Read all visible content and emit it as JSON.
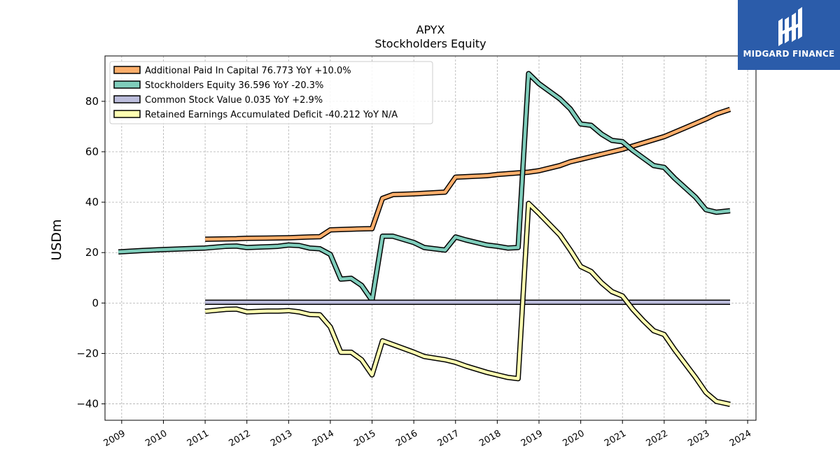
{
  "brand": {
    "name": "MIDGARD FINANCE",
    "bg_color": "#2b5caa"
  },
  "chart_data": {
    "type": "line",
    "title": "APYX",
    "subtitle": "Stockholders  Equity",
    "ylabel": "USDm",
    "xlabel": "",
    "xlim": [
      2008.6,
      2024.2
    ],
    "ylim": [
      -46.5,
      98
    ],
    "x_ticks": [
      "2009",
      "2010",
      "2011",
      "2012",
      "2013",
      "2014",
      "2015",
      "2016",
      "2017",
      "2018",
      "2019",
      "2020",
      "2021",
      "2022",
      "2023",
      "2024"
    ],
    "y_ticks": [
      -40,
      -20,
      0,
      20,
      40,
      60,
      80
    ],
    "grid": true,
    "legend_position": "top-left",
    "series": [
      {
        "name": "Additional Paid In Capital",
        "legend": "Additional Paid In Capital  76.773 YoY +10.0%",
        "color": "#fdae6b",
        "points": [
          [
            2011.0,
            25.3
          ],
          [
            2011.75,
            25.5
          ],
          [
            2012.0,
            25.7
          ],
          [
            2012.75,
            25.8
          ],
          [
            2013.0,
            25.9
          ],
          [
            2013.5,
            26.2
          ],
          [
            2013.75,
            26.3
          ],
          [
            2014.0,
            29.0
          ],
          [
            2014.5,
            29.3
          ],
          [
            2015.0,
            29.5
          ],
          [
            2015.25,
            41.5
          ],
          [
            2015.5,
            43.0
          ],
          [
            2016.0,
            43.3
          ],
          [
            2016.75,
            44.0
          ],
          [
            2017.0,
            49.9
          ],
          [
            2017.75,
            50.5
          ],
          [
            2018.0,
            51.0
          ],
          [
            2018.5,
            51.6
          ],
          [
            2018.75,
            51.9
          ],
          [
            2019.0,
            52.5
          ],
          [
            2019.5,
            54.5
          ],
          [
            2019.75,
            56.0
          ],
          [
            2020.0,
            57.0
          ],
          [
            2020.5,
            59.0
          ],
          [
            2021.0,
            61.0
          ],
          [
            2021.5,
            63.5
          ],
          [
            2022.0,
            66.0
          ],
          [
            2022.5,
            69.5
          ],
          [
            2023.0,
            73.0
          ],
          [
            2023.25,
            75.0
          ],
          [
            2023.58,
            76.8
          ]
        ]
      },
      {
        "name": "Stockholders Equity",
        "legend": "Stockholders Equity  36.596 YoY -20.3%",
        "color": "#7fcdbb",
        "points": [
          [
            2008.92,
            20.3
          ],
          [
            2009.5,
            20.8
          ],
          [
            2010.0,
            21.2
          ],
          [
            2010.5,
            21.5
          ],
          [
            2011.0,
            21.8
          ],
          [
            2011.5,
            22.5
          ],
          [
            2011.75,
            22.6
          ],
          [
            2012.0,
            22.0
          ],
          [
            2012.5,
            22.3
          ],
          [
            2012.75,
            22.5
          ],
          [
            2013.0,
            23.0
          ],
          [
            2013.25,
            22.8
          ],
          [
            2013.5,
            21.8
          ],
          [
            2013.75,
            21.5
          ],
          [
            2014.0,
            19.3
          ],
          [
            2014.25,
            9.5
          ],
          [
            2014.5,
            9.8
          ],
          [
            2014.75,
            7.0
          ],
          [
            2015.0,
            1.0
          ],
          [
            2015.25,
            26.5
          ],
          [
            2015.5,
            26.5
          ],
          [
            2016.0,
            24.0
          ],
          [
            2016.25,
            22.0
          ],
          [
            2016.75,
            21.0
          ],
          [
            2017.0,
            26.2
          ],
          [
            2017.25,
            25.0
          ],
          [
            2017.75,
            23.0
          ],
          [
            2018.0,
            22.5
          ],
          [
            2018.25,
            21.8
          ],
          [
            2018.5,
            22.0
          ],
          [
            2018.75,
            91.0
          ],
          [
            2019.0,
            87.0
          ],
          [
            2019.5,
            81.0
          ],
          [
            2019.75,
            77.0
          ],
          [
            2020.0,
            71.0
          ],
          [
            2020.25,
            70.5
          ],
          [
            2020.5,
            67.0
          ],
          [
            2020.75,
            64.5
          ],
          [
            2021.0,
            64.0
          ],
          [
            2021.25,
            60.5
          ],
          [
            2021.5,
            57.5
          ],
          [
            2021.75,
            54.5
          ],
          [
            2022.0,
            53.8
          ],
          [
            2022.25,
            49.5
          ],
          [
            2022.75,
            42.0
          ],
          [
            2023.0,
            37.0
          ],
          [
            2023.25,
            36.0
          ],
          [
            2023.58,
            36.6
          ]
        ]
      },
      {
        "name": "Common Stock Value",
        "legend": "Common Stock Value  0.035 YoY +2.9%",
        "color": "#bcbddc",
        "points": [
          [
            2011.0,
            0.3
          ],
          [
            2023.58,
            0.3
          ]
        ]
      },
      {
        "name": "Retained Earnings Accumulated Deficit",
        "legend": "Retained Earnings Accumulated Deficit  -40.212 YoY N/A",
        "color": "#ffffb2",
        "points": [
          [
            2011.0,
            -3.3
          ],
          [
            2011.5,
            -2.5
          ],
          [
            2011.75,
            -2.4
          ],
          [
            2012.0,
            -3.5
          ],
          [
            2012.5,
            -3.2
          ],
          [
            2012.75,
            -3.2
          ],
          [
            2013.0,
            -3.0
          ],
          [
            2013.25,
            -3.5
          ],
          [
            2013.5,
            -4.5
          ],
          [
            2013.75,
            -4.7
          ],
          [
            2014.0,
            -9.5
          ],
          [
            2014.25,
            -19.5
          ],
          [
            2014.5,
            -19.5
          ],
          [
            2014.75,
            -22.5
          ],
          [
            2015.0,
            -28.5
          ],
          [
            2015.25,
            -15.0
          ],
          [
            2015.5,
            -16.5
          ],
          [
            2016.0,
            -19.5
          ],
          [
            2016.25,
            -21.2
          ],
          [
            2016.75,
            -22.5
          ],
          [
            2017.0,
            -23.5
          ],
          [
            2017.25,
            -25.0
          ],
          [
            2017.75,
            -27.5
          ],
          [
            2018.0,
            -28.5
          ],
          [
            2018.25,
            -29.5
          ],
          [
            2018.5,
            -30.0
          ],
          [
            2018.75,
            39.5
          ],
          [
            2019.0,
            35.5
          ],
          [
            2019.5,
            27.0
          ],
          [
            2019.75,
            21.0
          ],
          [
            2020.0,
            14.5
          ],
          [
            2020.25,
            12.5
          ],
          [
            2020.5,
            8.0
          ],
          [
            2020.75,
            4.5
          ],
          [
            2021.0,
            2.8
          ],
          [
            2021.25,
            -2.5
          ],
          [
            2021.5,
            -7.0
          ],
          [
            2021.75,
            -11.0
          ],
          [
            2022.0,
            -12.5
          ],
          [
            2022.25,
            -18.5
          ],
          [
            2022.75,
            -29.5
          ],
          [
            2023.0,
            -35.5
          ],
          [
            2023.25,
            -39.0
          ],
          [
            2023.58,
            -40.2
          ]
        ]
      }
    ]
  }
}
